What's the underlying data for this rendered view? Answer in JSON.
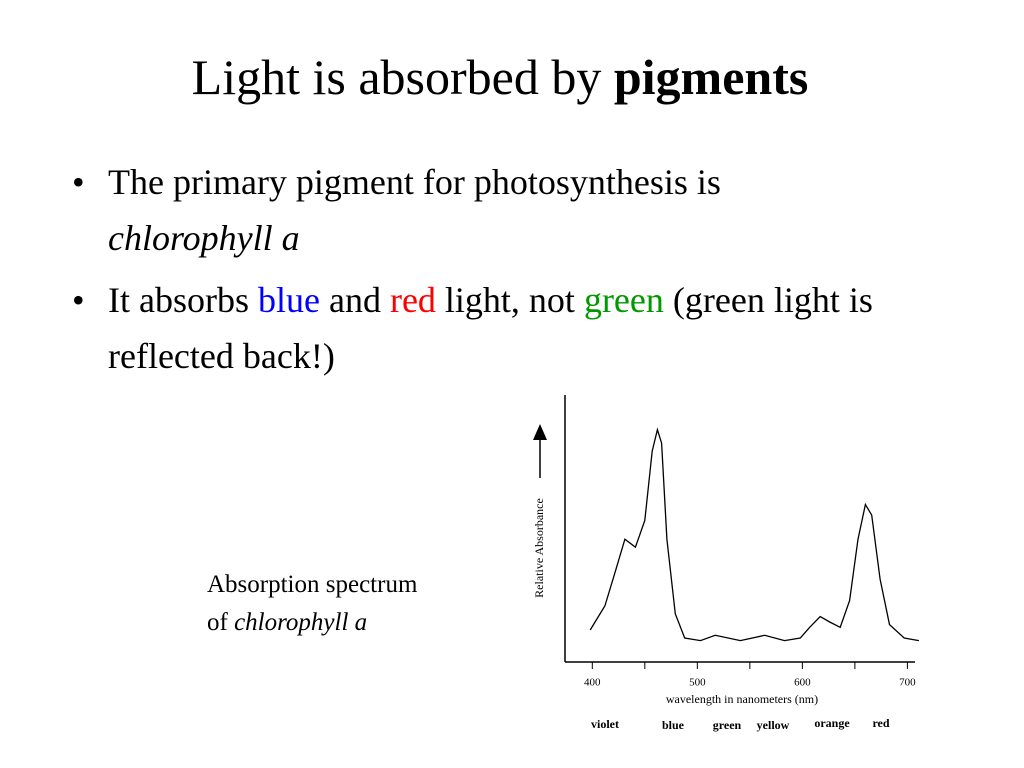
{
  "title": {
    "plain": "Light is absorbed by",
    "bold": "pigments"
  },
  "bullets": [
    [
      "The primary pigment for photosynthesis is",
      "chlorophyll a"
    ],
    [
      "It absorbs",
      "blue",
      "and",
      "red",
      "light, not",
      "green",
      "(green light is reflected back!)"
    ]
  ],
  "caption": {
    "line1": "Absorption spectrum",
    "of": "of",
    "name": "chlorophyll a"
  },
  "chart_data": {
    "type": "line",
    "ylabel": "Relative Absorbance",
    "xlabel": "wavelength in nanometers (nm)",
    "x": [
      398,
      412,
      422,
      431,
      441,
      450,
      457,
      462,
      466,
      471,
      479,
      488,
      503,
      517,
      541,
      564,
      583,
      598,
      607,
      617,
      626,
      636,
      645,
      653,
      660,
      666,
      674,
      683,
      697,
      711
    ],
    "values": [
      0.12,
      0.21,
      0.34,
      0.46,
      0.43,
      0.53,
      0.79,
      0.87,
      0.82,
      0.46,
      0.18,
      0.09,
      0.08,
      0.1,
      0.08,
      0.1,
      0.08,
      0.09,
      0.13,
      0.17,
      0.15,
      0.13,
      0.23,
      0.46,
      0.59,
      0.55,
      0.31,
      0.14,
      0.09,
      0.08
    ],
    "color": "#000000",
    "xlim": [
      374,
      712
    ],
    "ylim": [
      0,
      1
    ],
    "xticks": [
      400,
      500,
      600,
      700
    ],
    "xminorticks": [
      450,
      550,
      650
    ],
    "color_bands": [
      "violet",
      "blue",
      "green",
      "yellow",
      "orange",
      "red"
    ]
  }
}
